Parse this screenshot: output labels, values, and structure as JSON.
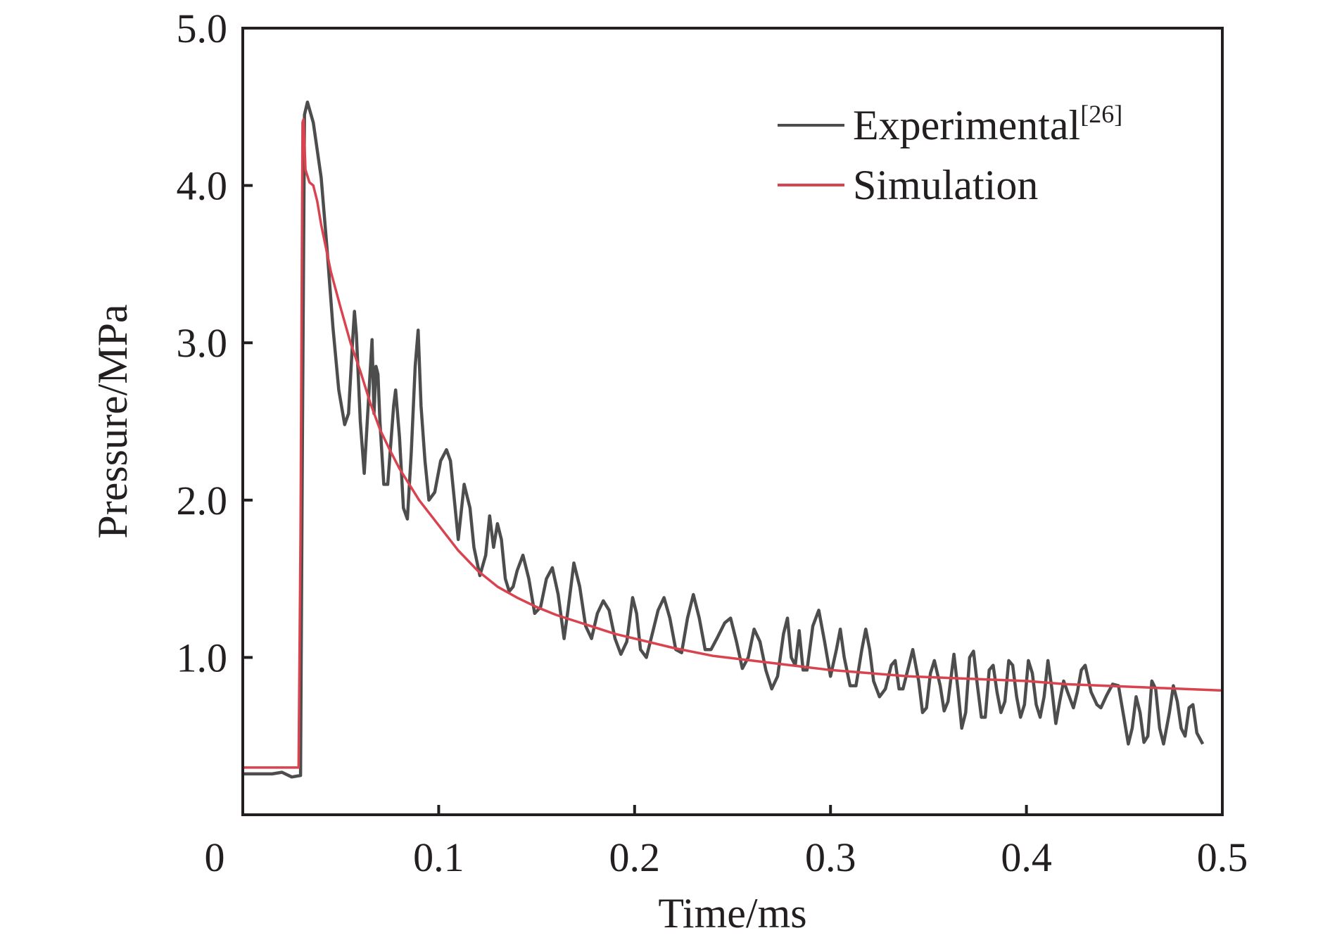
{
  "chart_data": {
    "type": "line",
    "title": "",
    "xlabel": "Time/ms",
    "ylabel": "Pressure/MPa",
    "xlim": [
      0,
      0.5
    ],
    "ylim": [
      0,
      5.0
    ],
    "grid": false,
    "legend_position": "top-right",
    "x_ticks": [
      0,
      0.1,
      0.2,
      0.3,
      0.4,
      0.5
    ],
    "x_tick_labels": [
      "0",
      "0.1",
      "0.2",
      "0.3",
      "0.4",
      "0.5"
    ],
    "y_ticks": [
      1.0,
      2.0,
      3.0,
      4.0,
      5.0
    ],
    "y_tick_labels": [
      "1.0",
      "2.0",
      "3.0",
      "4.0",
      "5.0"
    ],
    "series": [
      {
        "name": "Experimental",
        "name_superscript": "[26]",
        "color": "#4d4d4d",
        "points": [
          [
            0.0,
            0.26
          ],
          [
            0.015,
            0.26
          ],
          [
            0.02,
            0.27
          ],
          [
            0.025,
            0.24
          ],
          [
            0.0295,
            0.25
          ],
          [
            0.0305,
            2.5
          ],
          [
            0.0315,
            4.45
          ],
          [
            0.033,
            4.53
          ],
          [
            0.036,
            4.4
          ],
          [
            0.04,
            4.05
          ],
          [
            0.043,
            3.6
          ],
          [
            0.046,
            3.1
          ],
          [
            0.049,
            2.7
          ],
          [
            0.052,
            2.48
          ],
          [
            0.054,
            2.55
          ],
          [
            0.056,
            3.0
          ],
          [
            0.057,
            3.2
          ],
          [
            0.058,
            3.05
          ],
          [
            0.06,
            2.5
          ],
          [
            0.062,
            2.17
          ],
          [
            0.064,
            2.6
          ],
          [
            0.066,
            3.02
          ],
          [
            0.067,
            2.55
          ],
          [
            0.068,
            2.85
          ],
          [
            0.069,
            2.8
          ],
          [
            0.07,
            2.5
          ],
          [
            0.072,
            2.1
          ],
          [
            0.074,
            2.1
          ],
          [
            0.077,
            2.6
          ],
          [
            0.078,
            2.7
          ],
          [
            0.08,
            2.4
          ],
          [
            0.082,
            1.95
          ],
          [
            0.084,
            1.88
          ],
          [
            0.086,
            2.3
          ],
          [
            0.088,
            2.85
          ],
          [
            0.0895,
            3.08
          ],
          [
            0.091,
            2.6
          ],
          [
            0.093,
            2.25
          ],
          [
            0.095,
            2.0
          ],
          [
            0.098,
            2.05
          ],
          [
            0.101,
            2.25
          ],
          [
            0.104,
            2.32
          ],
          [
            0.106,
            2.25
          ],
          [
            0.108,
            2.0
          ],
          [
            0.11,
            1.75
          ],
          [
            0.113,
            2.1
          ],
          [
            0.116,
            1.95
          ],
          [
            0.118,
            1.7
          ],
          [
            0.121,
            1.52
          ],
          [
            0.124,
            1.65
          ],
          [
            0.126,
            1.9
          ],
          [
            0.127,
            1.8
          ],
          [
            0.128,
            1.7
          ],
          [
            0.13,
            1.85
          ],
          [
            0.132,
            1.75
          ],
          [
            0.134,
            1.5
          ],
          [
            0.136,
            1.42
          ],
          [
            0.138,
            1.45
          ],
          [
            0.14,
            1.55
          ],
          [
            0.143,
            1.65
          ],
          [
            0.146,
            1.5
          ],
          [
            0.149,
            1.28
          ],
          [
            0.152,
            1.32
          ],
          [
            0.155,
            1.5
          ],
          [
            0.158,
            1.57
          ],
          [
            0.161,
            1.4
          ],
          [
            0.164,
            1.12
          ],
          [
            0.166,
            1.3
          ],
          [
            0.169,
            1.6
          ],
          [
            0.172,
            1.45
          ],
          [
            0.175,
            1.2
          ],
          [
            0.178,
            1.12
          ],
          [
            0.181,
            1.28
          ],
          [
            0.184,
            1.36
          ],
          [
            0.187,
            1.3
          ],
          [
            0.19,
            1.12
          ],
          [
            0.193,
            1.02
          ],
          [
            0.196,
            1.1
          ],
          [
            0.199,
            1.38
          ],
          [
            0.201,
            1.28
          ],
          [
            0.203,
            1.05
          ],
          [
            0.206,
            1.0
          ],
          [
            0.209,
            1.15
          ],
          [
            0.212,
            1.3
          ],
          [
            0.215,
            1.38
          ],
          [
            0.218,
            1.25
          ],
          [
            0.221,
            1.05
          ],
          [
            0.224,
            1.03
          ],
          [
            0.227,
            1.25
          ],
          [
            0.23,
            1.4
          ],
          [
            0.233,
            1.25
          ],
          [
            0.236,
            1.05
          ],
          [
            0.239,
            1.05
          ],
          [
            0.242,
            1.12
          ],
          [
            0.246,
            1.22
          ],
          [
            0.249,
            1.25
          ],
          [
            0.252,
            1.1
          ],
          [
            0.255,
            0.93
          ],
          [
            0.258,
            1.0
          ],
          [
            0.261,
            1.18
          ],
          [
            0.264,
            1.1
          ],
          [
            0.267,
            0.92
          ],
          [
            0.27,
            0.8
          ],
          [
            0.273,
            0.88
          ],
          [
            0.276,
            1.15
          ],
          [
            0.278,
            1.25
          ],
          [
            0.28,
            1.0
          ],
          [
            0.282,
            0.95
          ],
          [
            0.284,
            1.17
          ],
          [
            0.286,
            0.92
          ],
          [
            0.288,
            0.92
          ],
          [
            0.291,
            1.2
          ],
          [
            0.294,
            1.3
          ],
          [
            0.297,
            1.1
          ],
          [
            0.3,
            0.88
          ],
          [
            0.303,
            1.05
          ],
          [
            0.305,
            1.18
          ],
          [
            0.307,
            1.0
          ],
          [
            0.31,
            0.82
          ],
          [
            0.313,
            0.82
          ],
          [
            0.316,
            1.05
          ],
          [
            0.318,
            1.18
          ],
          [
            0.32,
            1.05
          ],
          [
            0.322,
            0.85
          ],
          [
            0.325,
            0.75
          ],
          [
            0.328,
            0.8
          ],
          [
            0.331,
            0.95
          ],
          [
            0.333,
            0.98
          ],
          [
            0.335,
            0.8
          ],
          [
            0.337,
            0.8
          ],
          [
            0.34,
            0.95
          ],
          [
            0.342,
            1.05
          ],
          [
            0.345,
            0.85
          ],
          [
            0.347,
            0.65
          ],
          [
            0.349,
            0.68
          ],
          [
            0.351,
            0.9
          ],
          [
            0.353,
            0.98
          ],
          [
            0.356,
            0.82
          ],
          [
            0.358,
            0.66
          ],
          [
            0.36,
            0.72
          ],
          [
            0.363,
            1.02
          ],
          [
            0.365,
            0.8
          ],
          [
            0.367,
            0.55
          ],
          [
            0.369,
            0.65
          ],
          [
            0.371,
            1.0
          ],
          [
            0.373,
            1.04
          ],
          [
            0.375,
            0.82
          ],
          [
            0.377,
            0.62
          ],
          [
            0.379,
            0.62
          ],
          [
            0.381,
            0.92
          ],
          [
            0.383,
            0.95
          ],
          [
            0.385,
            0.78
          ],
          [
            0.387,
            0.65
          ],
          [
            0.389,
            0.72
          ],
          [
            0.391,
            0.98
          ],
          [
            0.393,
            0.95
          ],
          [
            0.395,
            0.75
          ],
          [
            0.397,
            0.62
          ],
          [
            0.399,
            0.7
          ],
          [
            0.401,
            0.98
          ],
          [
            0.403,
            0.9
          ],
          [
            0.405,
            0.7
          ],
          [
            0.407,
            0.62
          ],
          [
            0.409,
            0.75
          ],
          [
            0.411,
            0.98
          ],
          [
            0.413,
            0.8
          ],
          [
            0.415,
            0.58
          ],
          [
            0.417,
            0.72
          ],
          [
            0.419,
            0.85
          ],
          [
            0.421,
            0.78
          ],
          [
            0.424,
            0.68
          ],
          [
            0.426,
            0.78
          ],
          [
            0.428,
            0.92
          ],
          [
            0.43,
            0.95
          ],
          [
            0.433,
            0.78
          ],
          [
            0.436,
            0.7
          ],
          [
            0.438,
            0.68
          ],
          [
            0.441,
            0.76
          ],
          [
            0.444,
            0.83
          ],
          [
            0.447,
            0.82
          ],
          [
            0.45,
            0.6
          ],
          [
            0.452,
            0.45
          ],
          [
            0.454,
            0.55
          ],
          [
            0.456,
            0.75
          ],
          [
            0.458,
            0.65
          ],
          [
            0.46,
            0.46
          ],
          [
            0.462,
            0.5
          ],
          [
            0.464,
            0.85
          ],
          [
            0.466,
            0.8
          ],
          [
            0.468,
            0.55
          ],
          [
            0.47,
            0.45
          ],
          [
            0.473,
            0.65
          ],
          [
            0.475,
            0.82
          ],
          [
            0.477,
            0.72
          ],
          [
            0.479,
            0.55
          ],
          [
            0.481,
            0.5
          ],
          [
            0.483,
            0.68
          ],
          [
            0.485,
            0.7
          ],
          [
            0.487,
            0.52
          ],
          [
            0.49,
            0.45
          ]
        ]
      },
      {
        "name": "Simulation",
        "color": "#d9434f",
        "points": [
          [
            0.0,
            0.3
          ],
          [
            0.0285,
            0.3
          ],
          [
            0.0295,
            1.8
          ],
          [
            0.0305,
            4.4
          ],
          [
            0.031,
            4.42
          ],
          [
            0.032,
            4.1
          ],
          [
            0.034,
            4.02
          ],
          [
            0.036,
            4.0
          ],
          [
            0.038,
            3.9
          ],
          [
            0.04,
            3.75
          ],
          [
            0.045,
            3.45
          ],
          [
            0.05,
            3.22
          ],
          [
            0.055,
            3.0
          ],
          [
            0.06,
            2.82
          ],
          [
            0.065,
            2.62
          ],
          [
            0.07,
            2.45
          ],
          [
            0.075,
            2.32
          ],
          [
            0.08,
            2.2
          ],
          [
            0.085,
            2.1
          ],
          [
            0.09,
            2.0
          ],
          [
            0.1,
            1.84
          ],
          [
            0.11,
            1.68
          ],
          [
            0.12,
            1.55
          ],
          [
            0.13,
            1.45
          ],
          [
            0.14,
            1.38
          ],
          [
            0.15,
            1.32
          ],
          [
            0.16,
            1.27
          ],
          [
            0.17,
            1.23
          ],
          [
            0.18,
            1.19
          ],
          [
            0.19,
            1.15
          ],
          [
            0.2,
            1.12
          ],
          [
            0.22,
            1.06
          ],
          [
            0.24,
            1.01
          ],
          [
            0.26,
            0.98
          ],
          [
            0.28,
            0.95
          ],
          [
            0.3,
            0.92
          ],
          [
            0.32,
            0.9
          ],
          [
            0.34,
            0.88
          ],
          [
            0.36,
            0.87
          ],
          [
            0.38,
            0.86
          ],
          [
            0.4,
            0.85
          ],
          [
            0.42,
            0.83
          ],
          [
            0.44,
            0.82
          ],
          [
            0.46,
            0.81
          ],
          [
            0.48,
            0.8
          ],
          [
            0.5,
            0.79
          ]
        ]
      }
    ]
  }
}
